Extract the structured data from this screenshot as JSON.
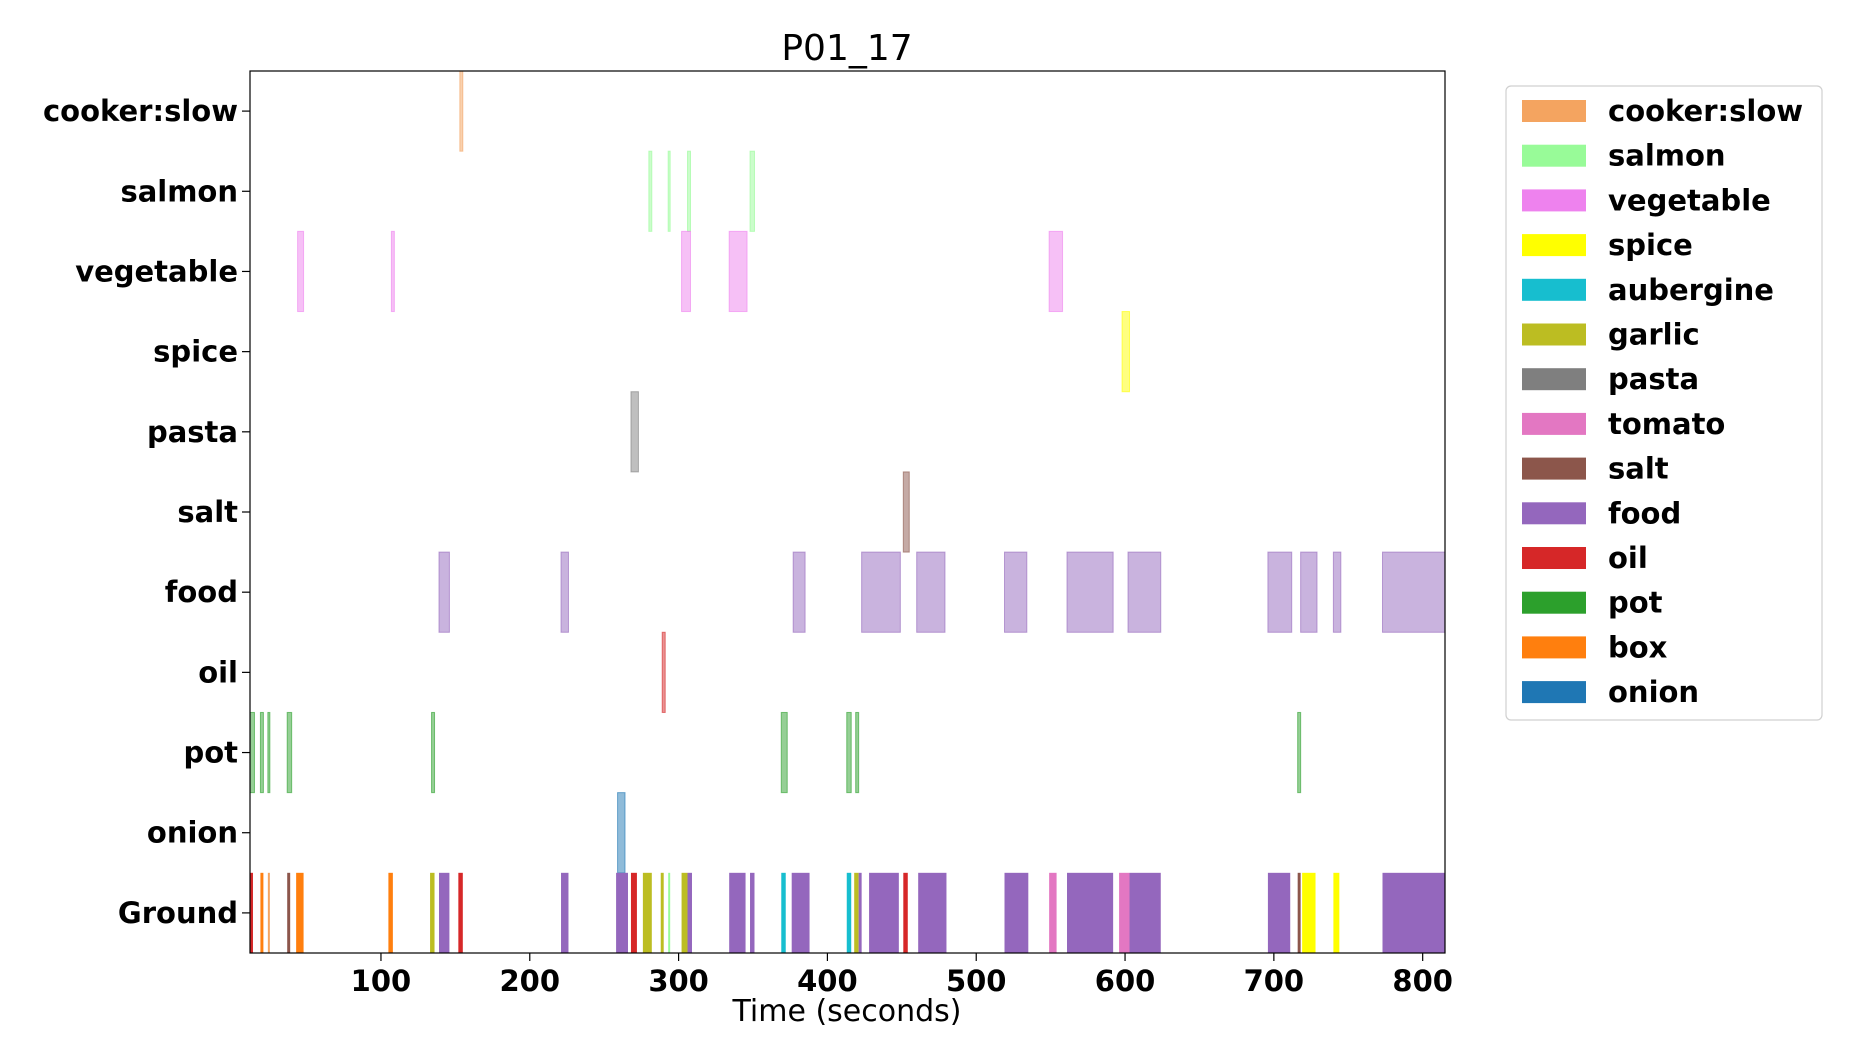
{
  "chart_data": {
    "type": "timeline",
    "title": "P01_17",
    "xlabel": "Time (seconds)",
    "ylabel": "",
    "xlim": [
      12,
      815
    ],
    "xticks": [
      100,
      200,
      300,
      400,
      500,
      600,
      700,
      800
    ],
    "grid": false,
    "legend_placement": "outside-right",
    "rows": [
      "cooker:slow",
      "salmon",
      "vegetable",
      "spice",
      "pasta",
      "salt",
      "food",
      "oil",
      "pot",
      "onion",
      "Ground"
    ],
    "legend": [
      {
        "label": "cooker:slow",
        "color": "#f4a460"
      },
      {
        "label": "salmon",
        "color": "#98fb98"
      },
      {
        "label": "vegetable",
        "color": "#ee82ee"
      },
      {
        "label": "spice",
        "color": "#ffff00"
      },
      {
        "label": "aubergine",
        "color": "#17becf"
      },
      {
        "label": "garlic",
        "color": "#bcbd22"
      },
      {
        "label": "pasta",
        "color": "#7f7f7f"
      },
      {
        "label": "tomato",
        "color": "#e377c2"
      },
      {
        "label": "salt",
        "color": "#8c564b"
      },
      {
        "label": "food",
        "color": "#9467bd"
      },
      {
        "label": "oil",
        "color": "#d62728"
      },
      {
        "label": "pot",
        "color": "#2ca02c"
      },
      {
        "label": "box",
        "color": "#ff7f0e"
      },
      {
        "label": "onion",
        "color": "#1f77b4"
      }
    ],
    "segments": [
      {
        "row": "cooker:slow",
        "label": "cooker:slow",
        "start": 153,
        "end": 155
      },
      {
        "row": "salmon",
        "label": "salmon",
        "start": 280,
        "end": 282
      },
      {
        "row": "salmon",
        "label": "salmon",
        "start": 293,
        "end": 294
      },
      {
        "row": "salmon",
        "label": "salmon",
        "start": 306,
        "end": 308
      },
      {
        "row": "salmon",
        "label": "salmon",
        "start": 348,
        "end": 351
      },
      {
        "row": "vegetable",
        "label": "vegetable",
        "start": 44,
        "end": 48
      },
      {
        "row": "vegetable",
        "label": "vegetable",
        "start": 107,
        "end": 109
      },
      {
        "row": "vegetable",
        "label": "vegetable",
        "start": 302,
        "end": 308
      },
      {
        "row": "vegetable",
        "label": "vegetable",
        "start": 334,
        "end": 346
      },
      {
        "row": "vegetable",
        "label": "vegetable",
        "start": 549,
        "end": 558
      },
      {
        "row": "spice",
        "label": "spice",
        "start": 598,
        "end": 603
      },
      {
        "row": "pasta",
        "label": "pasta",
        "start": 268,
        "end": 273
      },
      {
        "row": "salt",
        "label": "salt",
        "start": 451,
        "end": 455
      },
      {
        "row": "food",
        "label": "food",
        "start": 139,
        "end": 146
      },
      {
        "row": "food",
        "label": "food",
        "start": 221,
        "end": 226
      },
      {
        "row": "food",
        "label": "food",
        "start": 377,
        "end": 385
      },
      {
        "row": "food",
        "label": "food",
        "start": 423,
        "end": 449
      },
      {
        "row": "food",
        "label": "food",
        "start": 460,
        "end": 479
      },
      {
        "row": "food",
        "label": "food",
        "start": 519,
        "end": 534
      },
      {
        "row": "food",
        "label": "food",
        "start": 561,
        "end": 592
      },
      {
        "row": "food",
        "label": "food",
        "start": 602,
        "end": 624
      },
      {
        "row": "food",
        "label": "food",
        "start": 696,
        "end": 712
      },
      {
        "row": "food",
        "label": "food",
        "start": 718,
        "end": 729
      },
      {
        "row": "food",
        "label": "food",
        "start": 740,
        "end": 745
      },
      {
        "row": "food",
        "label": "food",
        "start": 773,
        "end": 815
      },
      {
        "row": "oil",
        "label": "oil",
        "start": 289,
        "end": 291
      },
      {
        "row": "pot",
        "label": "pot",
        "start": 12,
        "end": 15
      },
      {
        "row": "pot",
        "label": "pot",
        "start": 19,
        "end": 21
      },
      {
        "row": "pot",
        "label": "pot",
        "start": 24,
        "end": 25
      },
      {
        "row": "pot",
        "label": "pot",
        "start": 37,
        "end": 40
      },
      {
        "row": "pot",
        "label": "pot",
        "start": 134,
        "end": 136
      },
      {
        "row": "pot",
        "label": "pot",
        "start": 369,
        "end": 373
      },
      {
        "row": "pot",
        "label": "pot",
        "start": 413,
        "end": 416
      },
      {
        "row": "pot",
        "label": "pot",
        "start": 419,
        "end": 421
      },
      {
        "row": "pot",
        "label": "pot",
        "start": 716,
        "end": 718
      },
      {
        "row": "onion",
        "label": "onion",
        "start": 259,
        "end": 264
      },
      {
        "row": "Ground",
        "label": "oil",
        "start": 12,
        "end": 14
      },
      {
        "row": "Ground",
        "label": "box",
        "start": 19,
        "end": 21
      },
      {
        "row": "Ground",
        "label": "cooker:slow",
        "start": 24,
        "end": 25
      },
      {
        "row": "Ground",
        "label": "salt",
        "start": 37,
        "end": 39
      },
      {
        "row": "Ground",
        "label": "box",
        "start": 43,
        "end": 48
      },
      {
        "row": "Ground",
        "label": "box",
        "start": 105,
        "end": 108
      },
      {
        "row": "Ground",
        "label": "garlic",
        "start": 133,
        "end": 136
      },
      {
        "row": "Ground",
        "label": "food",
        "start": 139,
        "end": 146
      },
      {
        "row": "Ground",
        "label": "oil",
        "start": 152,
        "end": 155
      },
      {
        "row": "Ground",
        "label": "food",
        "start": 221,
        "end": 226
      },
      {
        "row": "Ground",
        "label": "food",
        "start": 258,
        "end": 266
      },
      {
        "row": "Ground",
        "label": "oil",
        "start": 268,
        "end": 272
      },
      {
        "row": "Ground",
        "label": "garlic",
        "start": 276,
        "end": 282
      },
      {
        "row": "Ground",
        "label": "garlic",
        "start": 288,
        "end": 290
      },
      {
        "row": "Ground",
        "label": "salmon",
        "start": 293,
        "end": 294
      },
      {
        "row": "Ground",
        "label": "garlic",
        "start": 302,
        "end": 306
      },
      {
        "row": "Ground",
        "label": "food",
        "start": 306,
        "end": 309
      },
      {
        "row": "Ground",
        "label": "food",
        "start": 334,
        "end": 345
      },
      {
        "row": "Ground",
        "label": "food",
        "start": 348,
        "end": 351
      },
      {
        "row": "Ground",
        "label": "aubergine",
        "start": 369,
        "end": 372
      },
      {
        "row": "Ground",
        "label": "food",
        "start": 376,
        "end": 388
      },
      {
        "row": "Ground",
        "label": "aubergine",
        "start": 413,
        "end": 416
      },
      {
        "row": "Ground",
        "label": "garlic",
        "start": 418,
        "end": 421
      },
      {
        "row": "Ground",
        "label": "food",
        "start": 421,
        "end": 423
      },
      {
        "row": "Ground",
        "label": "food",
        "start": 428,
        "end": 448
      },
      {
        "row": "Ground",
        "label": "oil",
        "start": 451,
        "end": 454
      },
      {
        "row": "Ground",
        "label": "food",
        "start": 461,
        "end": 480
      },
      {
        "row": "Ground",
        "label": "food",
        "start": 519,
        "end": 535
      },
      {
        "row": "Ground",
        "label": "tomato",
        "start": 549,
        "end": 554
      },
      {
        "row": "Ground",
        "label": "food",
        "start": 561,
        "end": 592
      },
      {
        "row": "Ground",
        "label": "tomato",
        "start": 596,
        "end": 603
      },
      {
        "row": "Ground",
        "label": "food",
        "start": 603,
        "end": 624
      },
      {
        "row": "Ground",
        "label": "food",
        "start": 696,
        "end": 711
      },
      {
        "row": "Ground",
        "label": "salt",
        "start": 716,
        "end": 718
      },
      {
        "row": "Ground",
        "label": "spice",
        "start": 719,
        "end": 728
      },
      {
        "row": "Ground",
        "label": "spice",
        "start": 740,
        "end": 744
      },
      {
        "row": "Ground",
        "label": "food",
        "start": 773,
        "end": 815
      }
    ]
  }
}
